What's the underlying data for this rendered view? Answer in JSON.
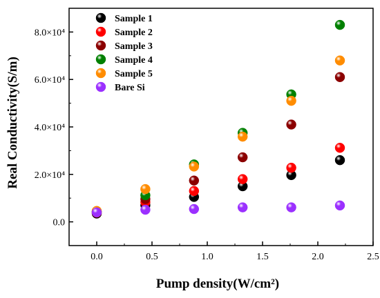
{
  "chart_data": {
    "type": "scatter",
    "xlabel": "Pump density(W/cm²)",
    "ylabel": "Real Conductivity(S/m)",
    "xlim": [
      -0.25,
      2.5
    ],
    "ylim": [
      -10000,
      90000
    ],
    "x_ticks": [
      {
        "value": 0.0,
        "label": "0.0"
      },
      {
        "value": 0.5,
        "label": "0.5"
      },
      {
        "value": 1.0,
        "label": "1.0"
      },
      {
        "value": 1.5,
        "label": "1.5"
      },
      {
        "value": 2.0,
        "label": "2.0"
      },
      {
        "value": 2.5,
        "label": "2.5"
      }
    ],
    "y_ticks": [
      {
        "value": 0,
        "label": "0.0"
      },
      {
        "value": 20000,
        "label": "2.0×10⁴"
      },
      {
        "value": 40000,
        "label": "4.0×10⁴"
      },
      {
        "value": 60000,
        "label": "6.0×10⁴"
      },
      {
        "value": 80000,
        "label": "8.0×10⁴"
      }
    ],
    "grid": false,
    "legend_position": "top-left",
    "series": [
      {
        "name": "Sample 1",
        "color": "#000000",
        "x": [
          0.0,
          0.44,
          0.88,
          1.32,
          1.76,
          2.2
        ],
        "y": [
          3500,
          7000,
          10500,
          15000,
          19700,
          26000
        ]
      },
      {
        "name": "Sample 2",
        "color": "#ff0000",
        "x": [
          0.0,
          0.44,
          0.88,
          1.32,
          1.76,
          2.2
        ],
        "y": [
          3900,
          8300,
          13000,
          18000,
          22800,
          31200
        ]
      },
      {
        "name": "Sample 3",
        "color": "#8b0000",
        "x": [
          0.0,
          0.44,
          0.88,
          1.32,
          1.76,
          2.2
        ],
        "y": [
          4200,
          9600,
          17400,
          27200,
          41000,
          61000
        ]
      },
      {
        "name": "Sample 4",
        "color": "#008000",
        "x": [
          0.0,
          0.44,
          0.88,
          1.32,
          1.76,
          2.2
        ],
        "y": [
          4400,
          11200,
          24200,
          37500,
          53700,
          83000
        ]
      },
      {
        "name": "Sample 5",
        "color": "#ff8c00",
        "x": [
          0.0,
          0.44,
          0.88,
          1.32,
          1.76,
          2.2
        ],
        "y": [
          4600,
          13800,
          23300,
          35900,
          51000,
          68000
        ]
      },
      {
        "name": "Bare Si",
        "color": "#9b30ff",
        "x": [
          0.0,
          0.44,
          0.88,
          1.32,
          1.76,
          2.2
        ],
        "y": [
          4000,
          5100,
          5400,
          6100,
          6100,
          6900
        ]
      }
    ]
  }
}
